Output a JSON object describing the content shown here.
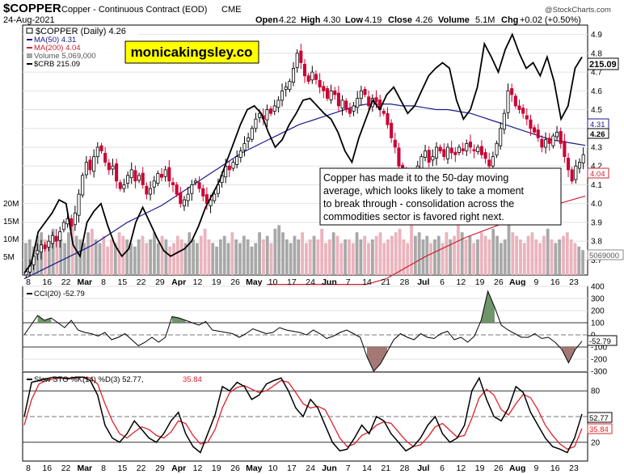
{
  "header": {
    "symbol": "$COPPER",
    "contract": "Copper - Continuous Contract (EOD)",
    "exchange": "CME",
    "date": "24-Aug-2021",
    "watermark": "@StockCharts.com",
    "ohlc": {
      "open_label": "Open",
      "open": "4.22",
      "high_label": "High",
      "high": "4.30",
      "low_label": "Low",
      "low": "4.19",
      "close_label": "Close",
      "close": "4.26",
      "volume_label": "Volume",
      "volume": "5.1M",
      "chg_label": "Chg",
      "chg": "+0.02 (+0.50%)"
    }
  },
  "legend": {
    "price": "$COPPER (Daily) 4.26",
    "ma50": "MA(50) 4.31",
    "ma200": "MA(200) 4.04",
    "volume": "Volume 5,069,000",
    "crb": "$CRB 215.09"
  },
  "brand_box": "monicakingsley.co",
  "annotation": {
    "line1": "Copper has made it to the 50-day moving",
    "line2": "average, which looks likely to take a moment",
    "line3": "to break through - consolidation across the",
    "line4": "commodities sector is favored right next."
  },
  "price_tags": {
    "crb": "215.09",
    "ma50": "4.31",
    "price": "4.26",
    "ma200": "4.04",
    "volume": "5069000"
  },
  "cci_legend": "CCI(20) -52.79",
  "cci_tag": "-52.79",
  "sto_legend_prefix": "Slow STO %K(14) %D(3) 52.77,",
  "sto_legend_d": "35.84",
  "sto_tags": {
    "k": "52.77",
    "d": "35.84"
  },
  "colors": {
    "up": "#000000",
    "down": "#cc0033",
    "ma50": "#1a1a8c",
    "ma200": "#cc2233",
    "crb": "#000000",
    "vol_up": "#a8a8a8",
    "vol_down": "#eab4bd",
    "cci_pos": "#5f8a5a",
    "cci_neg": "#9a6a66",
    "sto_k": "#000000",
    "sto_d": "#e0202a"
  },
  "chart_data": {
    "type": "candlestick",
    "title": "$COPPER (Daily)",
    "x_tick_labels": [
      "8",
      "16",
      "22",
      "Mar",
      "8",
      "15",
      "22",
      "29",
      "Apr",
      "12",
      "19",
      "26",
      "May",
      "10",
      "17",
      "24",
      "Jun",
      "7",
      "14",
      "21",
      "28",
      "Jul",
      "6",
      "12",
      "19",
      "26",
      "Aug",
      "9",
      "16",
      "23"
    ],
    "price_axis": {
      "range": [
        3.62,
        4.95
      ],
      "ticks": [
        "3.7",
        "3.8",
        "3.9",
        "4.0",
        "4.1",
        "4.2",
        "4.3",
        "4.4",
        "4.5",
        "4.6",
        "4.7",
        "4.8",
        "4.9"
      ]
    },
    "volume_axis": {
      "ticks": [
        "5M",
        "10M",
        "15M",
        "20M"
      ]
    },
    "price_series": [
      3.64,
      3.67,
      3.72,
      3.75,
      3.78,
      3.76,
      3.8,
      3.83,
      3.8,
      3.85,
      3.9,
      3.92,
      3.88,
      3.95,
      4.05,
      4.15,
      4.22,
      4.18,
      4.25,
      4.3,
      4.28,
      4.22,
      4.18,
      4.2,
      4.12,
      4.08,
      4.1,
      4.15,
      4.18,
      4.12,
      4.15,
      4.1,
      4.05,
      4.08,
      4.12,
      4.16,
      4.14,
      4.18,
      4.12,
      4.1,
      4.05,
      4.0,
      4.02,
      4.05,
      4.1,
      4.12,
      4.08,
      4.04,
      4.0,
      4.02,
      4.05,
      4.1,
      4.15,
      4.2,
      4.18,
      4.22,
      4.25,
      4.28,
      4.32,
      4.35,
      4.4,
      4.45,
      4.48,
      4.45,
      4.5,
      4.48,
      4.52,
      4.55,
      4.6,
      4.62,
      4.65,
      4.72,
      4.8,
      4.75,
      4.68,
      4.65,
      4.7,
      4.66,
      4.62,
      4.6,
      4.56,
      4.6,
      4.58,
      4.52,
      4.55,
      4.5,
      4.48,
      4.52,
      4.56,
      4.6,
      4.58,
      4.52,
      4.56,
      4.54,
      4.5,
      4.48,
      4.42,
      4.35,
      4.3,
      4.2,
      4.15,
      4.12,
      4.1,
      4.14,
      4.2,
      4.25,
      4.28,
      4.22,
      4.25,
      4.3,
      4.28,
      4.25,
      4.3,
      4.27,
      4.26,
      4.3,
      4.28,
      4.32,
      4.3,
      4.28,
      4.3,
      4.26,
      4.24,
      4.2,
      4.25,
      4.32,
      4.4,
      4.48,
      4.6,
      4.58,
      4.52,
      4.5,
      4.48,
      4.45,
      4.4,
      4.38,
      4.35,
      4.3,
      4.34,
      4.32,
      4.36,
      4.38,
      4.32,
      4.25,
      4.18,
      4.12,
      4.2,
      4.22,
      4.26
    ],
    "ma50_series": [
      3.6,
      3.63,
      3.66,
      3.69,
      3.72,
      3.75,
      3.78,
      3.82,
      3.86,
      3.9,
      3.93,
      3.96,
      3.99,
      4.03,
      4.07,
      4.11,
      4.15,
      4.19,
      4.23,
      4.27,
      4.3,
      4.33,
      4.36,
      4.39,
      4.42,
      4.44,
      4.46,
      4.48,
      4.5,
      4.52,
      4.53,
      4.53,
      4.53,
      4.52,
      4.52,
      4.51,
      4.5,
      4.5,
      4.49,
      4.48,
      4.46,
      4.44,
      4.42,
      4.4,
      4.38,
      4.36,
      4.34,
      4.33,
      4.32,
      4.31
    ],
    "ma200_series": [
      3.25,
      3.3,
      3.36,
      3.42,
      3.48,
      3.54,
      3.6,
      3.66,
      3.72,
      3.77,
      3.82,
      3.86,
      3.9,
      3.94,
      3.98,
      4.01,
      4.04
    ],
    "crb_series": [
      3.63,
      3.68,
      3.85,
      3.9,
      3.95,
      4.02,
      4.0,
      3.78,
      3.72,
      3.9,
      3.96,
      4.0,
      3.88,
      3.78,
      3.72,
      3.76,
      3.9,
      3.98,
      3.9,
      3.82,
      3.75,
      3.72,
      3.74,
      3.76,
      3.8,
      3.88,
      3.98,
      4.05,
      4.12,
      4.22,
      4.32,
      4.42,
      4.5,
      4.52,
      4.48,
      4.38,
      4.3,
      4.34,
      4.42,
      4.48,
      4.55,
      4.56,
      4.52,
      4.48,
      4.45,
      4.38,
      4.28,
      4.22,
      4.35,
      4.45,
      4.55,
      4.5,
      4.58,
      4.62,
      4.55,
      4.48,
      4.52,
      4.6,
      4.68,
      4.72,
      4.75,
      4.72,
      4.55,
      4.45,
      4.5,
      4.62,
      4.85,
      4.78,
      4.7,
      4.82,
      4.9,
      4.8,
      4.72,
      4.75,
      4.68,
      4.78,
      4.65,
      4.45,
      4.52,
      4.72,
      4.78
    ],
    "volume_series": [
      9,
      10,
      8,
      11,
      12,
      10,
      9,
      13,
      11,
      10,
      9,
      12,
      14,
      11,
      10,
      9,
      12,
      13,
      10,
      9,
      11,
      8,
      10,
      9,
      12,
      11,
      10,
      9,
      8,
      10,
      11,
      9,
      10,
      12,
      9,
      11,
      10,
      8,
      9,
      11,
      10,
      9,
      12,
      10,
      9,
      11,
      13,
      10,
      9,
      8,
      10,
      11,
      9,
      12,
      10,
      9,
      11,
      10,
      8,
      9,
      12,
      10,
      11,
      9,
      13,
      14,
      12,
      10,
      9,
      11,
      10,
      12,
      9,
      10,
      11,
      10,
      13,
      9,
      10,
      12,
      11,
      9,
      10,
      10,
      9,
      12,
      10,
      11,
      9,
      10,
      11,
      12,
      9,
      10,
      11,
      12,
      13,
      10,
      9,
      16,
      11,
      12,
      10,
      11,
      9,
      10,
      11,
      9,
      12,
      10,
      11,
      17,
      12,
      10,
      11,
      9,
      10,
      12,
      11,
      10,
      13,
      11,
      9,
      10,
      14,
      12,
      11,
      10,
      9,
      11,
      12,
      10,
      9,
      11,
      13,
      10,
      9,
      10,
      11,
      12,
      10,
      9,
      8,
      7
    ],
    "cci_axis": {
      "range": [
        -300,
        400
      ],
      "ticks": [
        "400",
        "300",
        "200",
        "100",
        "0",
        "-100",
        "-200",
        "-300"
      ]
    },
    "cci_series": [
      0,
      80,
      160,
      120,
      140,
      100,
      60,
      120,
      40,
      20,
      10,
      -10,
      20,
      -40,
      -20,
      10,
      -40,
      -90,
      -60,
      -20,
      -60,
      -20,
      150,
      140,
      120,
      100,
      80,
      110,
      40,
      30,
      20,
      10,
      -20,
      10,
      50,
      30,
      10,
      20,
      60,
      40,
      30,
      20,
      0,
      40,
      10,
      -30,
      -10,
      20,
      40,
      10,
      -20,
      -180,
      -300,
      -240,
      -140,
      -40,
      10,
      -20,
      -40,
      10,
      -20,
      -30,
      10,
      30,
      -40,
      -20,
      -60,
      -10,
      120,
      360,
      230,
      80,
      40,
      10,
      -20,
      -20,
      10,
      -30,
      -20,
      -60,
      -120,
      -230,
      -120,
      -53
    ],
    "sto_axis": {
      "range": [
        0,
        100
      ],
      "ticks": [
        "80",
        "50",
        "20"
      ]
    },
    "sto_k_series": [
      50,
      90,
      92,
      94,
      96,
      95,
      94,
      96,
      96,
      92,
      75,
      40,
      25,
      20,
      30,
      45,
      35,
      25,
      20,
      30,
      45,
      55,
      30,
      15,
      8,
      30,
      52,
      85,
      80,
      90,
      85,
      70,
      75,
      88,
      92,
      95,
      80,
      60,
      50,
      70,
      60,
      40,
      20,
      10,
      12,
      25,
      40,
      30,
      50,
      45,
      30,
      20,
      10,
      15,
      25,
      40,
      50,
      30,
      20,
      25,
      40,
      80,
      95,
      70,
      50,
      45,
      60,
      85,
      78,
      55,
      40,
      25,
      15,
      12,
      8,
      25,
      53
    ],
    "sto_d_series": [
      40,
      70,
      88,
      92,
      94,
      95,
      95,
      95,
      96,
      95,
      88,
      65,
      45,
      30,
      25,
      32,
      38,
      35,
      28,
      25,
      32,
      45,
      42,
      28,
      18,
      20,
      35,
      60,
      78,
      84,
      86,
      82,
      78,
      80,
      86,
      92,
      90,
      78,
      65,
      60,
      62,
      58,
      42,
      25,
      15,
      18,
      28,
      32,
      40,
      44,
      42,
      32,
      22,
      15,
      17,
      26,
      38,
      42,
      34,
      26,
      28,
      48,
      72,
      82,
      75,
      58,
      52,
      65,
      76,
      72,
      58,
      40,
      28,
      18,
      12,
      15,
      36
    ]
  }
}
